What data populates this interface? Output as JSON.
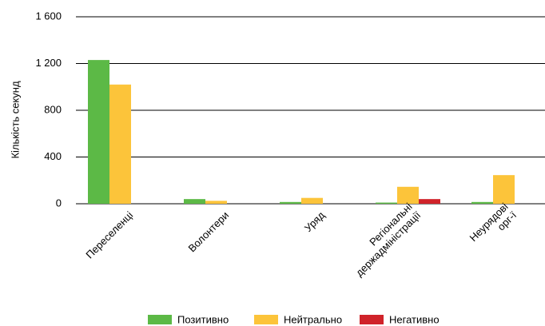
{
  "chart_data": {
    "type": "bar",
    "y_label": "Кількість секунд",
    "categories": [
      "Переселенці",
      "Волонтери",
      "Уряд",
      "Регіональні\nдержадміністрації",
      "Неурядові\nорг-ї"
    ],
    "series": [
      {
        "name": "Позитивно",
        "color": "#5cb946",
        "values": [
          1230,
          40,
          15,
          10,
          15
        ]
      },
      {
        "name": "Нейтрально",
        "color": "#fcc43a",
        "values": [
          1020,
          25,
          50,
          145,
          245
        ]
      },
      {
        "name": "Негативно",
        "color": "#d0232a",
        "values": [
          0,
          0,
          0,
          40,
          0
        ]
      }
    ],
    "ylim": [
      0,
      1600
    ],
    "yticks": [
      0,
      400,
      800,
      {
        "value": 1200,
        "label": "1 200"
      },
      {
        "value": 1600,
        "label": "1 600"
      }
    ],
    "grid": true
  }
}
